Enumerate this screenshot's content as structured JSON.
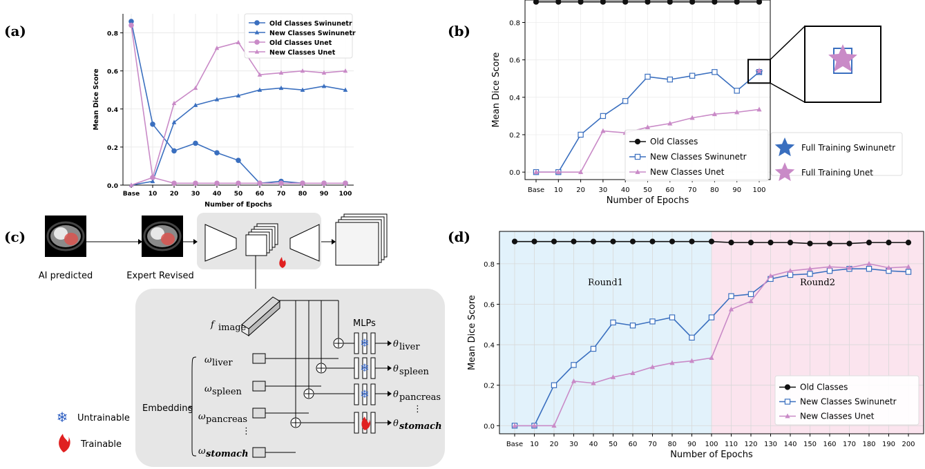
{
  "panels": {
    "a": "(a)",
    "b": "(b)",
    "c": "(c)",
    "d": "(d)"
  },
  "colors": {
    "blue": "#3a6fbf",
    "pink": "#c98ac7",
    "black": "#111111",
    "bg_round1": "#e2f2fb",
    "bg_round2": "#fbe4ee"
  },
  "chart_data": [
    {
      "id": "a",
      "type": "line",
      "xlabel": "Number of Epochs",
      "ylabel": "Mean Dice Score",
      "categories": [
        "Base",
        "10",
        "20",
        "30",
        "40",
        "50",
        "60",
        "70",
        "80",
        "90",
        "100"
      ],
      "ylim": [
        0,
        0.9
      ],
      "yticks": [
        "0.0",
        "0.2",
        "0.4",
        "0.6",
        "0.8"
      ],
      "legend_position": "top-right",
      "series": [
        {
          "name": "Old Classes Swinunetr",
          "color": "#3a6fbf",
          "marker": "circle",
          "values": [
            0.86,
            0.32,
            0.18,
            0.22,
            0.17,
            0.13,
            0.01,
            0.02,
            0.01,
            0.01,
            0.01
          ]
        },
        {
          "name": "New Classes Swinunetr",
          "color": "#3a6fbf",
          "marker": "triangle",
          "values": [
            0.0,
            0.02,
            0.33,
            0.42,
            0.45,
            0.47,
            0.5,
            0.51,
            0.5,
            0.52,
            0.5
          ]
        },
        {
          "name": "Old Classes Unet",
          "color": "#c98ac7",
          "marker": "circle",
          "values": [
            0.84,
            0.04,
            0.01,
            0.01,
            0.01,
            0.01,
            0.01,
            0.01,
            0.01,
            0.01,
            0.01
          ]
        },
        {
          "name": "New Classes Unet",
          "color": "#c98ac7",
          "marker": "triangle",
          "values": [
            0.0,
            0.04,
            0.43,
            0.51,
            0.72,
            0.75,
            0.58,
            0.59,
            0.6,
            0.59,
            0.6
          ]
        }
      ]
    },
    {
      "id": "b",
      "type": "line",
      "xlabel": "Number of Epochs",
      "ylabel": "Mean Dice Score",
      "categories": [
        "Base",
        "10",
        "20",
        "30",
        "40",
        "50",
        "60",
        "70",
        "80",
        "90",
        "100"
      ],
      "ylim": [
        -0.04,
        0.92
      ],
      "yticks": [
        "0.0",
        "0.2",
        "0.4",
        "0.6",
        "0.8"
      ],
      "legend_position": "bottom-right",
      "series": [
        {
          "name": "Old Classes",
          "color": "#111111",
          "marker": "circle",
          "values": [
            0.91,
            0.91,
            0.91,
            0.91,
            0.91,
            0.91,
            0.91,
            0.91,
            0.91,
            0.91,
            0.91
          ]
        },
        {
          "name": "New Classes Swinunetr",
          "color": "#3a6fbf",
          "marker": "square",
          "values": [
            0.0,
            0.0,
            0.2,
            0.3,
            0.38,
            0.51,
            0.495,
            0.515,
            0.535,
            0.435,
            0.535
          ]
        },
        {
          "name": "New Classes Unet",
          "color": "#c98ac7",
          "marker": "triangle",
          "values": [
            0.0,
            0.0,
            0.0,
            0.22,
            0.21,
            0.24,
            0.26,
            0.29,
            0.31,
            0.32,
            0.335
          ]
        }
      ],
      "extra_legend": [
        {
          "name": "Full Training Swinunetr",
          "color": "#3a6fbf",
          "marker": "star"
        },
        {
          "name": "Full Training Unet",
          "color": "#c98ac7",
          "marker": "star"
        }
      ],
      "full_training_point": {
        "x": "100",
        "values": [
          0.535,
          0.54
        ]
      }
    },
    {
      "id": "d",
      "type": "line",
      "xlabel": "Number of Epochs",
      "ylabel": "Mean Dice Score",
      "categories": [
        "Base",
        "10",
        "20",
        "30",
        "40",
        "50",
        "60",
        "70",
        "80",
        "90",
        "100",
        "110",
        "120",
        "130",
        "140",
        "150",
        "160",
        "170",
        "180",
        "190",
        "200"
      ],
      "ylim": [
        -0.04,
        0.96
      ],
      "yticks": [
        "0.0",
        "0.2",
        "0.4",
        "0.6",
        "0.8"
      ],
      "regions": [
        {
          "label": "Round1",
          "from": "Base",
          "to": "100"
        },
        {
          "label": "Round2",
          "from": "100",
          "to": "200"
        }
      ],
      "legend_position": "bottom-right",
      "series": [
        {
          "name": "Old Classes",
          "color": "#111111",
          "marker": "circle",
          "values": [
            0.91,
            0.91,
            0.91,
            0.91,
            0.91,
            0.91,
            0.91,
            0.91,
            0.91,
            0.91,
            0.91,
            0.905,
            0.905,
            0.905,
            0.905,
            0.9,
            0.9,
            0.9,
            0.905,
            0.905,
            0.905
          ]
        },
        {
          "name": "New Classes Swinunetr",
          "color": "#3a6fbf",
          "marker": "square",
          "values": [
            0.0,
            0.0,
            0.2,
            0.3,
            0.38,
            0.51,
            0.495,
            0.515,
            0.535,
            0.435,
            0.535,
            0.64,
            0.65,
            0.725,
            0.745,
            0.75,
            0.765,
            0.775,
            0.775,
            0.765,
            0.76
          ]
        },
        {
          "name": "New Classes Unet",
          "color": "#c98ac7",
          "marker": "triangle",
          "values": [
            0.0,
            0.0,
            0.0,
            0.22,
            0.21,
            0.24,
            0.26,
            0.29,
            0.31,
            0.32,
            0.335,
            0.575,
            0.615,
            0.74,
            0.765,
            0.775,
            0.785,
            0.78,
            0.8,
            0.78,
            0.785
          ]
        }
      ]
    }
  ],
  "diagram": {
    "ai_predicted": "AI predicted",
    "expert_revised": "Expert Revised",
    "f_image": "f",
    "f_image_sub": "image",
    "mlps": "MLPs",
    "embedding": "Embedding",
    "omegas": [
      {
        "sym": "ω",
        "sub": "liver"
      },
      {
        "sym": "ω",
        "sub": "spleen"
      },
      {
        "sym": "ω",
        "sub": "pancreas"
      },
      {
        "sym": "ω",
        "sub": "stomach"
      }
    ],
    "thetas": [
      {
        "sym": "θ",
        "sub": "liver"
      },
      {
        "sym": "θ",
        "sub": "spleen"
      },
      {
        "sym": "θ",
        "sub": "pancreas"
      },
      {
        "sym": "θ",
        "sub": "stomach"
      }
    ],
    "ellipsis": "⋮",
    "untrainable": "Untrainable",
    "trainable": "Trainable"
  }
}
